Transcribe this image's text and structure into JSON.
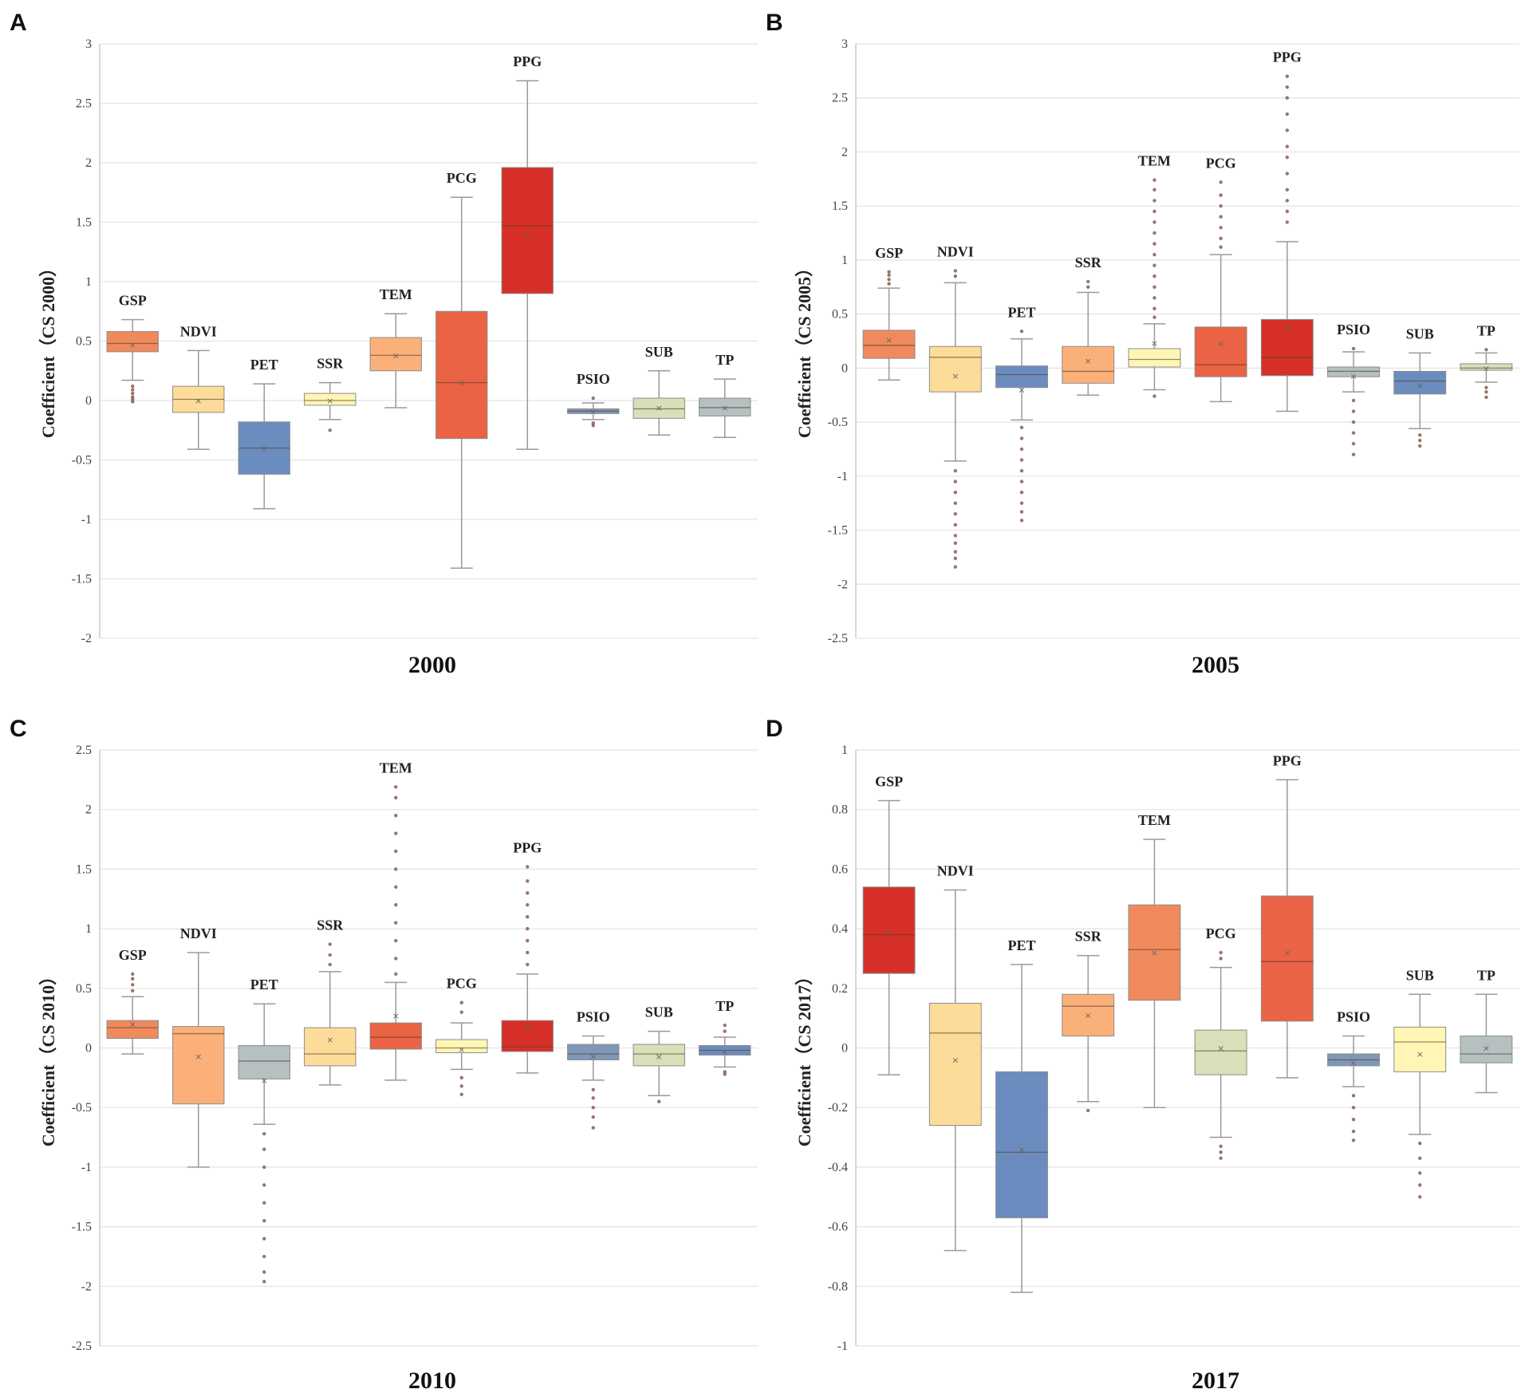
{
  "chart_data": [
    {
      "panel": "A",
      "type": "box",
      "xlabel": "2000",
      "ylabel": "Coefficient（CS 2000）",
      "ylim": [
        -2,
        3
      ],
      "yticks": [
        -2,
        -1.5,
        -1,
        -0.5,
        0,
        0.5,
        1,
        1.5,
        2,
        2.5,
        3
      ],
      "ytick_labels": [
        "-2",
        "-1.5",
        "-1",
        "-0.5",
        "0",
        "0.5",
        "1",
        "1.5",
        "2",
        "2.5",
        "3"
      ],
      "series": [
        {
          "name": "GSP",
          "color": "#F08A5C",
          "whisker_low": 0.17,
          "q1": 0.41,
          "median": 0.48,
          "q3": 0.58,
          "whisker_high": 0.68,
          "mean": 0.47,
          "outliers": [
            0.12,
            0.09,
            0.06,
            0.03,
            0.01,
            -0.01
          ]
        },
        {
          "name": "NDVI",
          "color": "#FDDC9A",
          "whisker_low": -0.41,
          "q1": -0.1,
          "median": 0.01,
          "q3": 0.12,
          "whisker_high": 0.42,
          "mean": 0.0,
          "outliers": []
        },
        {
          "name": "PET",
          "color": "#6B8CBF",
          "whisker_low": -0.91,
          "q1": -0.62,
          "median": -0.4,
          "q3": -0.18,
          "whisker_high": 0.14,
          "mean": -0.4,
          "outliers": []
        },
        {
          "name": "SSR",
          "color": "#FFF6B5",
          "whisker_low": -0.16,
          "q1": -0.04,
          "median": 0.0,
          "q3": 0.06,
          "whisker_high": 0.15,
          "mean": 0.0,
          "outliers": [
            -0.25
          ]
        },
        {
          "name": "TEM",
          "color": "#FBB07A",
          "whisker_low": -0.06,
          "q1": 0.25,
          "median": 0.38,
          "q3": 0.53,
          "whisker_high": 0.73,
          "mean": 0.38,
          "outliers": []
        },
        {
          "name": "PCG",
          "color": "#EA6344",
          "whisker_low": -1.41,
          "q1": -0.32,
          "median": 0.15,
          "q3": 0.75,
          "whisker_high": 1.71,
          "mean": 0.15,
          "outliers": []
        },
        {
          "name": "PPG",
          "color": "#D62F27",
          "whisker_low": -0.41,
          "q1": 0.9,
          "median": 1.47,
          "q3": 1.96,
          "whisker_high": 2.69,
          "mean": 1.4,
          "outliers": []
        },
        {
          "name": "PSIO",
          "color": "#7F97BA",
          "whisker_low": -0.16,
          "q1": -0.11,
          "median": -0.09,
          "q3": -0.07,
          "whisker_high": -0.02,
          "mean": -0.09,
          "outliers": [
            0.02,
            -0.19,
            -0.21
          ]
        },
        {
          "name": "SUB",
          "color": "#D9DFB8",
          "whisker_low": -0.29,
          "q1": -0.15,
          "median": -0.07,
          "q3": 0.02,
          "whisker_high": 0.25,
          "mean": -0.06,
          "outliers": []
        },
        {
          "name": "TP",
          "color": "#B4C1C0",
          "whisker_low": -0.31,
          "q1": -0.13,
          "median": -0.06,
          "q3": 0.02,
          "whisker_high": 0.18,
          "mean": -0.06,
          "outliers": []
        }
      ]
    },
    {
      "panel": "B",
      "type": "box",
      "xlabel": "2005",
      "ylabel": "Coefficient（CS 2005）",
      "ylim": [
        -2.5,
        3
      ],
      "yticks": [
        -2.5,
        -2,
        -1.5,
        -1,
        -0.5,
        0,
        0.5,
        1,
        1.5,
        2,
        2.5,
        3
      ],
      "ytick_labels": [
        "-2.5",
        "-2",
        "-1.5",
        "-1",
        "-0.5",
        "0",
        "0.5",
        "1",
        "1.5",
        "2",
        "2.5",
        "3"
      ],
      "series": [
        {
          "name": "GSP",
          "color": "#F08A5C",
          "whisker_low": -0.11,
          "q1": 0.09,
          "median": 0.21,
          "q3": 0.35,
          "whisker_high": 0.74,
          "mean": 0.26,
          "outliers": [
            0.78,
            0.82,
            0.86,
            0.89
          ]
        },
        {
          "name": "NDVI",
          "color": "#FDDC9A",
          "whisker_low": -0.86,
          "q1": -0.22,
          "median": 0.1,
          "q3": 0.2,
          "whisker_high": 0.79,
          "mean": -0.07,
          "outliers": [
            0.85,
            0.9,
            -0.95,
            -1.05,
            -1.15,
            -1.25,
            -1.35,
            -1.45,
            -1.55,
            -1.62,
            -1.7,
            -1.76,
            -1.84
          ]
        },
        {
          "name": "PET",
          "color": "#6B8CBF",
          "whisker_low": -0.48,
          "q1": -0.18,
          "median": -0.06,
          "q3": 0.02,
          "whisker_high": 0.27,
          "mean": -0.2,
          "outliers": [
            0.34,
            -0.55,
            -0.65,
            -0.75,
            -0.85,
            -0.95,
            -1.05,
            -1.15,
            -1.25,
            -1.33,
            -1.41
          ]
        },
        {
          "name": "SSR",
          "color": "#FBB07A",
          "whisker_low": -0.25,
          "q1": -0.14,
          "median": -0.03,
          "q3": 0.2,
          "whisker_high": 0.7,
          "mean": 0.07,
          "outliers": [
            0.75,
            0.8
          ]
        },
        {
          "name": "TEM",
          "color": "#FFF6B5",
          "whisker_low": -0.2,
          "q1": 0.01,
          "median": 0.08,
          "q3": 0.18,
          "whisker_high": 0.41,
          "mean": 0.23,
          "outliers": [
            -0.26,
            0.47,
            0.55,
            0.65,
            0.75,
            0.85,
            0.95,
            1.05,
            1.15,
            1.25,
            1.35,
            1.45,
            1.55,
            1.65,
            1.74
          ]
        },
        {
          "name": "PCG",
          "color": "#EA6344",
          "whisker_low": -0.31,
          "q1": -0.08,
          "median": 0.03,
          "q3": 0.38,
          "whisker_high": 1.05,
          "mean": 0.23,
          "outliers": [
            1.12,
            1.2,
            1.3,
            1.4,
            1.5,
            1.6,
            1.72
          ]
        },
        {
          "name": "PPG",
          "color": "#D62F27",
          "whisker_low": -0.4,
          "q1": -0.07,
          "median": 0.1,
          "q3": 0.45,
          "whisker_high": 1.17,
          "mean": 0.37,
          "outliers": [
            1.35,
            1.45,
            1.55,
            1.65,
            1.8,
            1.95,
            2.05,
            2.2,
            2.35,
            2.5,
            2.6,
            2.7
          ]
        },
        {
          "name": "PSIO",
          "color": "#B4C1C0",
          "whisker_low": -0.22,
          "q1": -0.08,
          "median": -0.03,
          "q3": 0.01,
          "whisker_high": 0.15,
          "mean": -0.07,
          "outliers": [
            0.18,
            -0.3,
            -0.4,
            -0.5,
            -0.6,
            -0.7,
            -0.8
          ]
        },
        {
          "name": "SUB",
          "color": "#6B8CBF",
          "whisker_low": -0.56,
          "q1": -0.24,
          "median": -0.12,
          "q3": -0.03,
          "whisker_high": 0.14,
          "mean": -0.16,
          "outliers": [
            -0.62,
            -0.67,
            -0.72
          ]
        },
        {
          "name": "TP",
          "color": "#D9DFB8",
          "whisker_low": -0.13,
          "q1": -0.02,
          "median": 0.0,
          "q3": 0.04,
          "whisker_high": 0.14,
          "mean": 0.0,
          "outliers": [
            0.17,
            -0.18,
            -0.22,
            -0.27
          ]
        }
      ]
    },
    {
      "panel": "C",
      "type": "box",
      "xlabel": "2010",
      "ylabel": "Coefficient（CS 2010）",
      "ylim": [
        -2.5,
        2.5
      ],
      "yticks": [
        -2.5,
        -2,
        -1.5,
        -1,
        -0.5,
        0,
        0.5,
        1,
        1.5,
        2,
        2.5
      ],
      "ytick_labels": [
        "-2.5",
        "-2",
        "-1.5",
        "-1",
        "-0.5",
        "0",
        "0.5",
        "1",
        "1.5",
        "2",
        "2.5"
      ],
      "series": [
        {
          "name": "GSP",
          "color": "#F08A5C",
          "whisker_low": -0.05,
          "q1": 0.08,
          "median": 0.17,
          "q3": 0.23,
          "whisker_high": 0.43,
          "mean": 0.2,
          "outliers": [
            0.48,
            0.53,
            0.58,
            0.62
          ]
        },
        {
          "name": "NDVI",
          "color": "#FBB07A",
          "whisker_low": -1.0,
          "q1": -0.47,
          "median": 0.12,
          "q3": 0.18,
          "whisker_high": 0.8,
          "mean": -0.07,
          "outliers": []
        },
        {
          "name": "PET",
          "color": "#B4C1C0",
          "whisker_low": -0.64,
          "q1": -0.26,
          "median": -0.11,
          "q3": 0.02,
          "whisker_high": 0.37,
          "mean": -0.27,
          "outliers": [
            -0.72,
            -0.85,
            -1.0,
            -1.15,
            -1.3,
            -1.45,
            -1.6,
            -1.75,
            -1.88,
            -1.96
          ]
        },
        {
          "name": "SSR",
          "color": "#FDDC9A",
          "whisker_low": -0.31,
          "q1": -0.15,
          "median": -0.05,
          "q3": 0.17,
          "whisker_high": 0.64,
          "mean": 0.07,
          "outliers": [
            0.7,
            0.78,
            0.87
          ]
        },
        {
          "name": "TEM",
          "color": "#EA6344",
          "whisker_low": -0.27,
          "q1": -0.01,
          "median": 0.09,
          "q3": 0.21,
          "whisker_high": 0.55,
          "mean": 0.27,
          "outliers": [
            0.62,
            0.75,
            0.9,
            1.05,
            1.2,
            1.35,
            1.5,
            1.65,
            1.8,
            1.95,
            2.1,
            2.19
          ]
        },
        {
          "name": "PCG",
          "color": "#FFF6B5",
          "whisker_low": -0.18,
          "q1": -0.04,
          "median": 0.0,
          "q3": 0.07,
          "whisker_high": 0.21,
          "mean": -0.01,
          "outliers": [
            0.3,
            0.38,
            -0.25,
            -0.32,
            -0.39
          ]
        },
        {
          "name": "PPG",
          "color": "#D62F27",
          "whisker_low": -0.21,
          "q1": -0.03,
          "median": 0.01,
          "q3": 0.23,
          "whisker_high": 0.62,
          "mean": 0.18,
          "outliers": [
            0.7,
            0.8,
            0.9,
            1.0,
            1.1,
            1.2,
            1.3,
            1.4,
            1.52
          ]
        },
        {
          "name": "PSIO",
          "color": "#7F97BA",
          "whisker_low": -0.27,
          "q1": -0.1,
          "median": -0.05,
          "q3": 0.03,
          "whisker_high": 0.1,
          "mean": -0.07,
          "outliers": [
            -0.35,
            -0.42,
            -0.5,
            -0.58,
            -0.67
          ]
        },
        {
          "name": "SUB",
          "color": "#D9DFB8",
          "whisker_low": -0.4,
          "q1": -0.15,
          "median": -0.05,
          "q3": 0.03,
          "whisker_high": 0.14,
          "mean": -0.07,
          "outliers": [
            -0.45
          ]
        },
        {
          "name": "TP",
          "color": "#6B8CBF",
          "whisker_low": -0.16,
          "q1": -0.06,
          "median": -0.02,
          "q3": 0.02,
          "whisker_high": 0.09,
          "mean": -0.03,
          "outliers": [
            0.14,
            0.19,
            -0.2,
            -0.22
          ]
        }
      ]
    },
    {
      "panel": "D",
      "type": "box",
      "xlabel": "2017",
      "ylabel": "Coefficient（CS 2017）",
      "ylim": [
        -1,
        1
      ],
      "yticks": [
        -1,
        -0.8,
        -0.6,
        -0.4,
        -0.2,
        0,
        0.2,
        0.4,
        0.6,
        0.8,
        1
      ],
      "ytick_labels": [
        "-1",
        "-0.8",
        "-0.6",
        "-0.4",
        "-0.2",
        "0",
        "0.2",
        "0.4",
        "0.6",
        "0.8",
        "1"
      ],
      "series": [
        {
          "name": "GSP",
          "color": "#D62F27",
          "whisker_low": -0.09,
          "q1": 0.25,
          "median": 0.38,
          "q3": 0.54,
          "whisker_high": 0.83,
          "mean": 0.39,
          "outliers": []
        },
        {
          "name": "NDVI",
          "color": "#FDDC9A",
          "whisker_low": -0.68,
          "q1": -0.26,
          "median": 0.05,
          "q3": 0.15,
          "whisker_high": 0.53,
          "mean": -0.04,
          "outliers": []
        },
        {
          "name": "PET",
          "color": "#6B8CBF",
          "whisker_low": -0.82,
          "q1": -0.57,
          "median": -0.35,
          "q3": -0.08,
          "whisker_high": 0.28,
          "mean": -0.34,
          "outliers": []
        },
        {
          "name": "SSR",
          "color": "#FBB07A",
          "whisker_low": -0.18,
          "q1": 0.04,
          "median": 0.14,
          "q3": 0.18,
          "whisker_high": 0.31,
          "mean": 0.11,
          "outliers": [
            -0.21
          ]
        },
        {
          "name": "TEM",
          "color": "#F08A5C",
          "whisker_low": -0.2,
          "q1": 0.16,
          "median": 0.33,
          "q3": 0.48,
          "whisker_high": 0.7,
          "mean": 0.32,
          "outliers": []
        },
        {
          "name": "PCG",
          "color": "#D9DFB8",
          "whisker_low": -0.3,
          "q1": -0.09,
          "median": -0.01,
          "q3": 0.06,
          "whisker_high": 0.27,
          "mean": 0.0,
          "outliers": [
            0.3,
            0.32,
            -0.33,
            -0.35,
            -0.37
          ]
        },
        {
          "name": "PPG",
          "color": "#EA6344",
          "whisker_low": -0.1,
          "q1": 0.09,
          "median": 0.29,
          "q3": 0.51,
          "whisker_high": 0.9,
          "mean": 0.32,
          "outliers": []
        },
        {
          "name": "PSIO",
          "color": "#7F97BA",
          "whisker_low": -0.13,
          "q1": -0.06,
          "median": -0.04,
          "q3": -0.02,
          "whisker_high": 0.04,
          "mean": -0.05,
          "outliers": [
            -0.16,
            -0.2,
            -0.24,
            -0.28,
            -0.31
          ]
        },
        {
          "name": "SUB",
          "color": "#FFF6B5",
          "whisker_low": -0.29,
          "q1": -0.08,
          "median": 0.02,
          "q3": 0.07,
          "whisker_high": 0.18,
          "mean": -0.02,
          "outliers": [
            -0.32,
            -0.37,
            -0.42,
            -0.46,
            -0.5
          ]
        },
        {
          "name": "TP",
          "color": "#B4C1C0",
          "whisker_low": -0.15,
          "q1": -0.05,
          "median": -0.02,
          "q3": 0.04,
          "whisker_high": 0.18,
          "mean": 0.0,
          "outliers": []
        }
      ]
    }
  ],
  "style": {
    "grid_color": "#e3e3e3",
    "axis_color": "#bdbdbd",
    "whisker_color": "#9a9a9a",
    "outlier_color": "#8a5a50",
    "mean_marker_color": "#666666"
  }
}
